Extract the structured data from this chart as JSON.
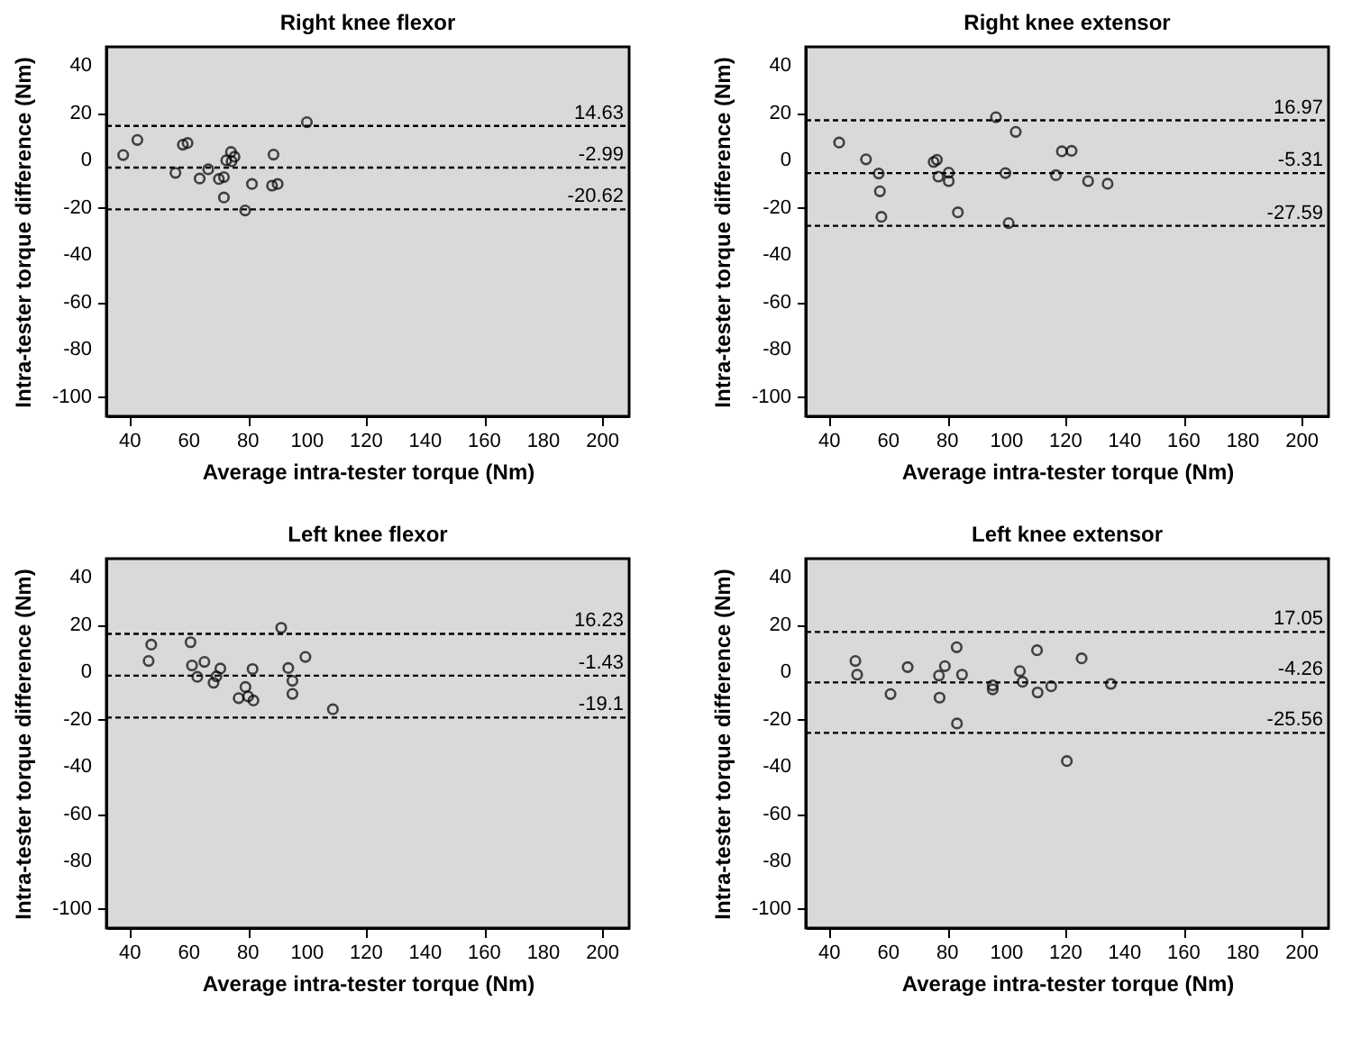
{
  "chart_data": [
    {
      "type": "scatter",
      "title": "Right knee flexor",
      "xlabel": "Average intra-tester torque (Nm)",
      "ylabel": "Intra-tester torque difference (Nm)",
      "xlim": [
        32,
        209
      ],
      "ylim": [
        -108,
        48
      ],
      "xticks": [
        40,
        60,
        80,
        100,
        120,
        140,
        160,
        180,
        200
      ],
      "yticks": [
        -100,
        -80,
        -60,
        -40,
        -20,
        0,
        20,
        40
      ],
      "marker": "circle",
      "grid": false,
      "series": [
        {
          "color": "#000000",
          "x": [
            37.7,
            42.5,
            55.4,
            57.9,
            59.5,
            63.6,
            66.5,
            70.1,
            71.8,
            71.8,
            72.6,
            74.2,
            74.4,
            75.4,
            79.0,
            81.3,
            88.1,
            88.6,
            90.0,
            99.9
          ],
          "values": [
            2.3,
            8.7,
            -5.2,
            6.7,
            7.4,
            -7.6,
            -3.7,
            -7.8,
            -7.0,
            -15.6,
            0.1,
            3.6,
            -0.3,
            1.6,
            -21.1,
            -9.9,
            -10.6,
            2.5,
            -9.9,
            16.2
          ]
        }
      ],
      "ref_lines": [
        {
          "axis": "y",
          "value": 14.63,
          "label": "14.63",
          "line_style": "dashed"
        },
        {
          "axis": "y",
          "value": -2.99,
          "label": "-2.99",
          "line_style": "dashed"
        },
        {
          "axis": "y",
          "value": -20.62,
          "label": "-20.62",
          "line_style": "dashed"
        }
      ]
    },
    {
      "type": "scatter",
      "title": "Right knee extensor",
      "xlabel": "Average intra-tester torque (Nm)",
      "ylabel": "Intra-tester torque difference (Nm)",
      "xlim": [
        32,
        209
      ],
      "ylim": [
        -108,
        48
      ],
      "xticks": [
        40,
        60,
        80,
        100,
        120,
        140,
        160,
        180,
        200
      ],
      "yticks": [
        -100,
        -80,
        -60,
        -40,
        -20,
        0,
        20,
        40
      ],
      "marker": "circle",
      "grid": false,
      "series": [
        {
          "color": "#000000",
          "x": [
            43.3,
            52.4,
            56.7,
            57.1,
            57.6,
            75.3,
            76.4,
            76.9,
            80.4,
            80.4,
            83.5,
            96.4,
            99.6,
            100.7,
            103.1,
            116.7,
            118.7,
            122.0,
            127.6,
            134.2
          ],
          "values": [
            7.6,
            0.5,
            -5.5,
            -13.0,
            -23.8,
            -0.6,
            0.3,
            -6.8,
            -5.1,
            -8.7,
            -21.9,
            18.3,
            -5.3,
            -26.4,
            12.1,
            -6.2,
            3.9,
            4.1,
            -8.7,
            -9.8
          ]
        }
      ],
      "ref_lines": [
        {
          "axis": "y",
          "value": 16.97,
          "label": "16.97",
          "line_style": "dashed"
        },
        {
          "axis": "y",
          "value": -5.31,
          "label": "-5.31",
          "line_style": "dashed"
        },
        {
          "axis": "y",
          "value": -27.59,
          "label": "-27.59",
          "line_style": "dashed"
        }
      ]
    },
    {
      "type": "scatter",
      "title": "Left knee flexor",
      "xlabel": "Average intra-tester torque (Nm)",
      "ylabel": "Intra-tester torque difference (Nm)",
      "xlim": [
        32,
        209
      ],
      "ylim": [
        -108,
        48
      ],
      "xticks": [
        40,
        60,
        80,
        100,
        120,
        140,
        160,
        180,
        200
      ],
      "yticks": [
        -100,
        -80,
        -60,
        -40,
        -20,
        0,
        20,
        40
      ],
      "marker": "circle",
      "grid": false,
      "series": [
        {
          "color": "#000000",
          "x": [
            46.3,
            47.2,
            60.5,
            61.0,
            62.8,
            65.2,
            68.3,
            69.3,
            70.6,
            76.8,
            79.1,
            80.0,
            81.5,
            81.8,
            91.2,
            93.6,
            95.0,
            95.0,
            99.4,
            108.7
          ],
          "values": [
            4.8,
            11.7,
            12.7,
            2.9,
            -1.9,
            4.4,
            -4.4,
            -1.7,
            1.6,
            -10.9,
            -6.2,
            -10.2,
            1.4,
            -11.9,
            18.8,
            1.8,
            -3.6,
            -9.1,
            6.5,
            -15.6
          ]
        }
      ],
      "ref_lines": [
        {
          "axis": "y",
          "value": 16.23,
          "label": "16.23",
          "line_style": "dashed"
        },
        {
          "axis": "y",
          "value": -1.43,
          "label": "-1.43",
          "line_style": "dashed"
        },
        {
          "axis": "y",
          "value": -19.1,
          "label": "-19.1",
          "line_style": "dashed"
        }
      ]
    },
    {
      "type": "scatter",
      "title": "Left knee extensor",
      "xlabel": "Average intra-tester torque (Nm)",
      "ylabel": "Intra-tester torque difference (Nm)",
      "xlim": [
        32,
        209
      ],
      "ylim": [
        -108,
        48
      ],
      "xticks": [
        40,
        60,
        80,
        100,
        120,
        140,
        160,
        180,
        200
      ],
      "yticks": [
        -100,
        -80,
        -60,
        -40,
        -20,
        0,
        20,
        40
      ],
      "marker": "circle",
      "grid": false,
      "series": [
        {
          "color": "#000000",
          "x": [
            48.8,
            49.4,
            60.7,
            66.5,
            77.1,
            77.3,
            79.1,
            83.1,
            83.2,
            84.9,
            95.3,
            95.3,
            104.5,
            105.4,
            110.3,
            110.5,
            115.1,
            120.4,
            125.4,
            135.3
          ],
          "values": [
            4.8,
            -1.0,
            -9.2,
            2.2,
            -1.4,
            -10.7,
            2.6,
            10.6,
            -21.6,
            -1.0,
            -5.5,
            -7.2,
            0.5,
            -4.0,
            9.3,
            -8.5,
            -5.9,
            -37.5,
            5.9,
            -4.9
          ]
        }
      ],
      "ref_lines": [
        {
          "axis": "y",
          "value": 17.05,
          "label": "17.05",
          "line_style": "dashed"
        },
        {
          "axis": "y",
          "value": -4.26,
          "label": "-4.26",
          "line_style": "dashed"
        },
        {
          "axis": "y",
          "value": -25.56,
          "label": "-25.56",
          "line_style": "dashed"
        }
      ]
    }
  ]
}
